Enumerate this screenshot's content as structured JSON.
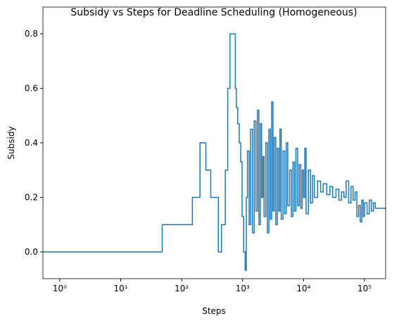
{
  "chart_data": {
    "type": "step",
    "title": "Subsidy vs Steps for Deadline Scheduling (Homogeneous)",
    "xlabel": "Steps",
    "ylabel": "Subsidy",
    "xscale": "log",
    "color": "#1f77b4",
    "xlim": [
      0.53,
      222000
    ],
    "ylim": [
      -0.098,
      0.898
    ],
    "xticks": [
      {
        "value": 1,
        "label": "10⁰"
      },
      {
        "value": 10,
        "label": "10¹"
      },
      {
        "value": 100,
        "label": "10²"
      },
      {
        "value": 1000,
        "label": "10³"
      },
      {
        "value": 10000,
        "label": "10⁴"
      },
      {
        "value": 100000,
        "label": "10⁵"
      }
    ],
    "yticks": [
      {
        "value": 0,
        "label": "0.0"
      },
      0.2,
      0.4,
      0.6,
      0.8
    ],
    "x": [
      0.53,
      48,
      150,
      200,
      250,
      300,
      400,
      450,
      520,
      570,
      620,
      760,
      790,
      830,
      880,
      930,
      980,
      1040,
      1100,
      1150,
      1200,
      1280,
      1350,
      1450,
      1550,
      1650,
      1750,
      1850,
      1950,
      2050,
      2150,
      2250,
      2400,
      2550,
      2700,
      2850,
      3000,
      3150,
      3300,
      3500,
      3700,
      3900,
      4100,
      4300,
      4600,
      4900,
      5200,
      5500,
      5900,
      6300,
      6700,
      7100,
      7500,
      8000,
      8500,
      9000,
      9500,
      10000,
      10500,
      11000,
      12000,
      13000,
      14000,
      15000,
      17000,
      19000,
      21000,
      24000,
      27000,
      30000,
      34000,
      38000,
      42000,
      46000,
      50000,
      55000,
      60000,
      65000,
      70000,
      75000,
      80000,
      85000,
      90000,
      95000,
      100000,
      110000,
      120000,
      130000,
      140000,
      150000
    ],
    "values": [
      0,
      0.1,
      0.2,
      0.4,
      0.3,
      0.2,
      0,
      0.1,
      0.3,
      0.6,
      0.8,
      0.6,
      0.53,
      0.47,
      0.4,
      0.33,
      0.13,
      0,
      -0.067,
      0.2,
      0.37,
      0.1,
      0.45,
      0.07,
      0.48,
      0.15,
      0.52,
      0.1,
      0.47,
      0.2,
      0.35,
      0.13,
      0.4,
      0.07,
      0.45,
      0.12,
      0.55,
      0.15,
      0.42,
      0.1,
      0.38,
      0.15,
      0.45,
      0.12,
      0.37,
      0.14,
      0.4,
      0.17,
      0.3,
      0.13,
      0.33,
      0.15,
      0.38,
      0.17,
      0.32,
      0.16,
      0.3,
      0.2,
      0.38,
      0.14,
      0.3,
      0.18,
      0.28,
      0.2,
      0.26,
      0.22,
      0.25,
      0.21,
      0.24,
      0.2,
      0.23,
      0.19,
      0.22,
      0.2,
      0.26,
      0.18,
      0.24,
      0.19,
      0.22,
      0.13,
      0.17,
      0.11,
      0.19,
      0.13,
      0.18,
      0.14,
      0.19,
      0.15,
      0.18,
      0.16
    ]
  }
}
